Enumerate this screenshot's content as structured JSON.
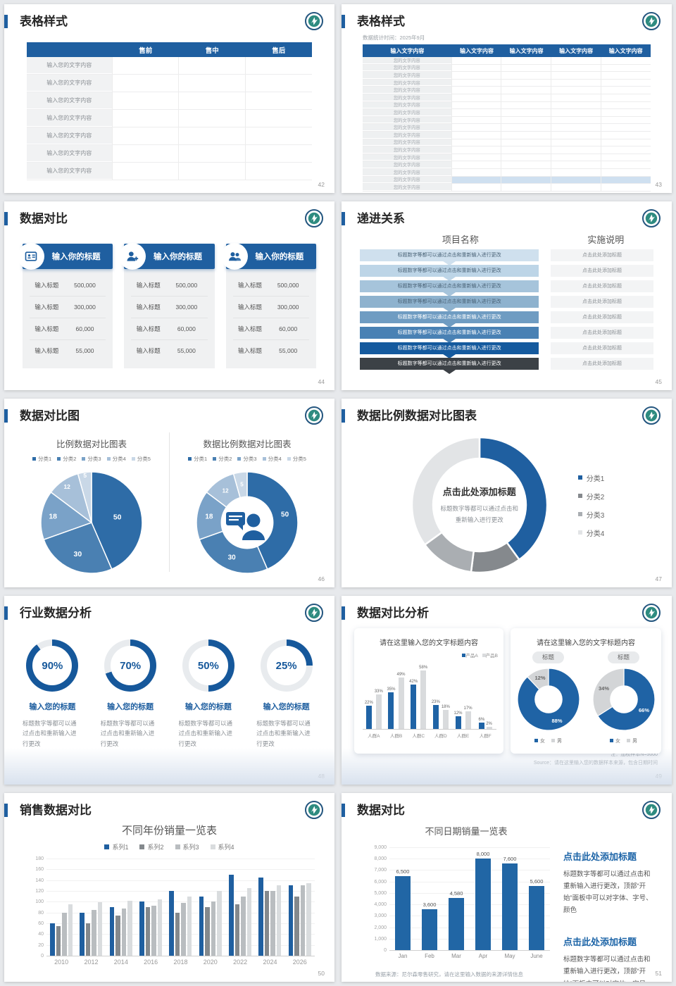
{
  "accent": "#1f5fa0",
  "logo_name": "school-emblem-logo",
  "slides": {
    "s42": {
      "title": "表格样式",
      "page": "42",
      "table": {
        "headers": [
          "",
          "售前",
          "售中",
          "售后"
        ],
        "row_label": "输入您的文字内容",
        "row_count": 7
      }
    },
    "s43": {
      "title": "表格样式",
      "page": "43",
      "subtitle": "数据统计时间：2025年9月",
      "table": {
        "headers": [
          "输入文字内容",
          "输入文字内容",
          "输入文字内容",
          "输入文字内容",
          "输入文字内容"
        ],
        "row_label": "您的文字内容",
        "row_count": 18,
        "highlight_row": 17
      }
    },
    "s44": {
      "title": "数据对比",
      "page": "44",
      "cards": [
        {
          "icon": "id-card-icon",
          "header": "输入你的标题",
          "rows": [
            {
              "label": "输入标题",
              "value": "500,000"
            },
            {
              "label": "输入标题",
              "value": "300,000"
            },
            {
              "label": "输入标题",
              "value": "60,000"
            },
            {
              "label": "输入标题",
              "value": "55,000"
            }
          ]
        },
        {
          "icon": "person-add-icon",
          "header": "输入你的标题",
          "rows": [
            {
              "label": "输入标题",
              "value": "500,000"
            },
            {
              "label": "输入标题",
              "value": "300,000"
            },
            {
              "label": "输入标题",
              "value": "60,000"
            },
            {
              "label": "输入标题",
              "value": "55,000"
            }
          ]
        },
        {
          "icon": "people-icon",
          "header": "输入你的标题",
          "rows": [
            {
              "label": "输入标题",
              "value": "500,000"
            },
            {
              "label": "输入标题",
              "value": "300,000"
            },
            {
              "label": "输入标题",
              "value": "60,000"
            },
            {
              "label": "输入标题",
              "value": "55,000"
            }
          ]
        }
      ]
    },
    "s45": {
      "title": "递进关系",
      "page": "45",
      "left_header": "项目名称",
      "right_header": "实施说明",
      "step_text": "标题数字等都可以通过点击和重新输入进行更改",
      "note_text": "点击此处添加标题",
      "steps": [
        {
          "color": "#cfe0ee",
          "dark": true
        },
        {
          "color": "#bdd5e7",
          "dark": true
        },
        {
          "color": "#a6c4db",
          "dark": true
        },
        {
          "color": "#8eb2ce",
          "dark": true
        },
        {
          "color": "#6f9cc2",
          "dark": false
        },
        {
          "color": "#4981b4",
          "dark": false
        },
        {
          "color": "#155a9e",
          "dark": false
        },
        {
          "color": "#3c4146",
          "dark": false
        }
      ]
    },
    "s46": {
      "title": "数据对比图",
      "page": "46",
      "pie_colors": [
        "#2e6ca7",
        "#4a80b2",
        "#7aa2c8",
        "#a7c0d9",
        "#c9d8e7"
      ],
      "chart_left": {
        "type": "pie",
        "title": "比例数据对比图表",
        "legend": [
          "分类1",
          "分类2",
          "分类3",
          "分类4",
          "分类5"
        ],
        "values": [
          50,
          30,
          18,
          12,
          5
        ]
      },
      "chart_right": {
        "type": "donut",
        "title": "数据比例数据对比图表",
        "legend": [
          "分类1",
          "分类2",
          "分类3",
          "分类4",
          "分类5"
        ],
        "values": [
          50,
          30,
          18,
          12,
          5
        ],
        "center_icon": "person-chat-icon"
      }
    },
    "s47": {
      "title": "数据比例数据对比图表",
      "page": "47",
      "chart": {
        "type": "donut",
        "values": [
          40,
          12,
          13,
          35
        ],
        "colors": [
          "#1f5fa0",
          "#85898d",
          "#aaaeb2",
          "#e2e4e6"
        ],
        "legend": [
          "分类1",
          "分类2",
          "分类3",
          "分类4"
        ]
      },
      "center_title": "点击此处添加标题",
      "center_sub1": "标题数字等都可以通过点击和",
      "center_sub2": "重新输入进行更改"
    },
    "s48": {
      "title": "行业数据分析",
      "page": "48",
      "items": [
        {
          "percent": 90,
          "percent_label": "90%",
          "label": "输入您的标题",
          "desc": "标题数字等都可以通过点击和重新输入进行更改"
        },
        {
          "percent": 70,
          "percent_label": "70%",
          "label": "输入您的标题",
          "desc": "标题数字等都可以通过点击和重新输入进行更改"
        },
        {
          "percent": 50,
          "percent_label": "50%",
          "label": "输入您的标题",
          "desc": "标题数字等都可以通过点击和重新输入进行更改"
        },
        {
          "percent": 25,
          "percent_label": "25%",
          "label": "输入您的标题",
          "desc": "标题数字等都可以通过点击和重新输入进行更改"
        }
      ]
    },
    "s49": {
      "title": "数据对比分析",
      "page": "49",
      "bar_card": {
        "type": "bar",
        "title": "请在这里输入您的文字标题内容",
        "legend": [
          "产品A",
          "产品B"
        ],
        "colors": [
          "#1f63a5",
          "#d9dbdd"
        ],
        "categories": [
          "人群A",
          "人群B",
          "人群C",
          "人群D",
          "人群E",
          "人群F"
        ],
        "series": [
          {
            "name": "产品A",
            "values": [
              22,
              35,
              42,
              23,
              12,
              6
            ]
          },
          {
            "name": "产品B",
            "values": [
              33,
              49,
              58,
              18,
              17,
              2
            ]
          }
        ],
        "ymax": 60
      },
      "donut_card": {
        "title": "请在这里输入您的文字标题内容",
        "pills": [
          "标题",
          "标题"
        ],
        "donuts": [
          {
            "slices": [
              {
                "value": 88,
                "label": "88%"
              },
              {
                "value": 12,
                "label": "12%"
              }
            ]
          },
          {
            "slices": [
              {
                "value": 66,
                "label": "66%"
              },
              {
                "value": 34,
                "label": "34%"
              }
            ]
          }
        ],
        "colors": [
          "#1f63a5",
          "#d3d5d7"
        ],
        "legend": [
          "女",
          "男"
        ]
      },
      "note": "注：加权样本N=5000",
      "source": "Source：请在这里输入您的数据样本来源，包含日期时间"
    },
    "s50": {
      "title": "销售数据对比",
      "page": "50",
      "chart": {
        "type": "bar",
        "title": "不同年份销量一览表",
        "legend": [
          "系列1",
          "系列2",
          "系列3",
          "系列4"
        ],
        "colors": [
          "#1f5fa0",
          "#84898d",
          "#b9bdc0",
          "#d9dcde"
        ],
        "categories": [
          "2010",
          "2012",
          "2014",
          "2016",
          "2018",
          "2020",
          "2022",
          "2024",
          "2026"
        ],
        "series": [
          {
            "name": "系列1",
            "values": [
              60,
              80,
              90,
              100,
              120,
              110,
              150,
              145,
              130
            ]
          },
          {
            "name": "系列2",
            "values": [
              55,
              60,
              75,
              90,
              80,
              90,
              95,
              120,
              110
            ]
          },
          {
            "name": "系列3",
            "values": [
              80,
              85,
              88,
              92,
              98,
              100,
              110,
              120,
              130
            ]
          },
          {
            "name": "系列4",
            "values": [
              95,
              99,
              102,
              105,
              110,
              120,
              125,
              130,
              135
            ]
          }
        ],
        "ymax": 180,
        "yticks": [
          "180",
          "160",
          "140",
          "120",
          "100",
          "80",
          "60",
          "40",
          "20",
          "0"
        ]
      }
    },
    "s51": {
      "title": "数据对比",
      "page": "51",
      "chart": {
        "type": "bar",
        "title": "不同日期销量一览表",
        "categories": [
          "Jan",
          "Feb",
          "Mar",
          "Apr",
          "May",
          "June"
        ],
        "values": [
          6500,
          3600,
          4580,
          8000,
          7600,
          5600
        ],
        "labels": [
          "6,500",
          "3,600",
          "4,580",
          "8,000",
          "7,600",
          "5,600"
        ],
        "ymax": 9000,
        "yticks": [
          "9,000",
          "8,000",
          "7,000",
          "6,000",
          "5,000",
          "4,000",
          "3,000",
          "2,000",
          "1,000",
          "0"
        ]
      },
      "source": "数据来源：尼尔森零售研究，请在这里输入数据的来源详情信息",
      "blocks": [
        {
          "heading": "点击此处添加标题",
          "body": "标题数字等都可以通过点击和重新输入进行更改，顶部“开始”面板中可以对字体、字号、颜色"
        },
        {
          "heading": "点击此处添加标题",
          "body": "标题数字等都可以通过点击和重新输入进行更改，顶部“开始”面板中可以对字体、字号、颜色"
        }
      ]
    }
  }
}
